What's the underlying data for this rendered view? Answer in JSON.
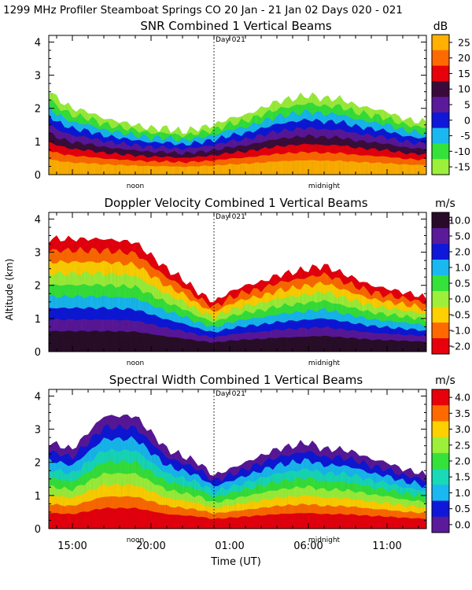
{
  "figure_title": "1299 MHz Profiler  Steamboat Springs CO  20 Jan - 21 Jan 02 Days 020 - 021",
  "shared": {
    "ylabel": "Altitude (km)",
    "xlabel": "Time (UT)",
    "ylim": [
      0,
      4.2
    ],
    "yticks": [
      0,
      1,
      2,
      3,
      4
    ],
    "xlim_hours_ut": [
      13.5,
      37.5
    ],
    "xticks": [
      {
        "hour": 15,
        "label": "15:00"
      },
      {
        "hour": 20,
        "label": "20:00"
      },
      {
        "hour": 25,
        "label": "01:00"
      },
      {
        "hour": 30,
        "label": "06:00"
      },
      {
        "hour": 35,
        "label": "11:00"
      }
    ],
    "day_marker": {
      "hour": 24,
      "label": "Day 021"
    },
    "noon_marker": {
      "hour": 19,
      "label": "noon"
    },
    "midnight_marker": {
      "hour": 31,
      "label": "midnight"
    }
  },
  "chart_data": [
    {
      "type": "heatmap",
      "title": "SNR Combined 1 Vertical Beams",
      "unit": "dB",
      "colorbar": {
        "labels": [
          "25",
          "20",
          "15",
          "10",
          "5",
          "0",
          "-5",
          "-10",
          "-15"
        ],
        "colors": [
          "#ffb000",
          "#ff6a00",
          "#e8000b",
          "#3a0a3a",
          "#5a1a9a",
          "#0f18d8",
          "#1ab8f0",
          "#35e23a",
          "#9cf03a"
        ]
      },
      "top_km_by_hour": [
        [
          13.5,
          2.6
        ],
        [
          14,
          2.3
        ],
        [
          15,
          2.0
        ],
        [
          16,
          1.9
        ],
        [
          17,
          1.7
        ],
        [
          18,
          1.6
        ],
        [
          19,
          1.5
        ],
        [
          20,
          1.4
        ],
        [
          21,
          1.4
        ],
        [
          22,
          1.3
        ],
        [
          23,
          1.4
        ],
        [
          24,
          1.5
        ],
        [
          25,
          1.7
        ],
        [
          26,
          1.8
        ],
        [
          27,
          2.0
        ],
        [
          28,
          2.2
        ],
        [
          29,
          2.3
        ],
        [
          30,
          2.4
        ],
        [
          31,
          2.3
        ],
        [
          32,
          2.3
        ],
        [
          33,
          2.1
        ],
        [
          34,
          2.0
        ],
        [
          35,
          1.9
        ],
        [
          36,
          1.7
        ],
        [
          37,
          1.6
        ],
        [
          37.5,
          1.6
        ]
      ]
    },
    {
      "type": "heatmap",
      "title": "Doppler Velocity Combined 1 Vertical Beams",
      "unit": "m/s",
      "colorbar": {
        "labels": [
          "10.0",
          "5.0",
          "2.0",
          "1.0",
          "0.5",
          "0.0",
          "-0.5",
          "-1.0",
          "-2.0"
        ],
        "colors": [
          "#2a0a2a",
          "#5a1a9a",
          "#0f18d8",
          "#1ab8f0",
          "#35e23a",
          "#9cf03a",
          "#ffd000",
          "#ff6a00",
          "#e8000b"
        ]
      },
      "top_km_by_hour": [
        [
          13.5,
          3.4
        ],
        [
          15,
          3.4
        ],
        [
          17,
          3.4
        ],
        [
          19,
          3.3
        ],
        [
          21,
          2.5
        ],
        [
          22,
          2.2
        ],
        [
          23,
          1.8
        ],
        [
          24,
          1.5
        ],
        [
          25,
          1.8
        ],
        [
          26,
          2.0
        ],
        [
          27,
          2.1
        ],
        [
          28,
          2.3
        ],
        [
          29,
          2.4
        ],
        [
          30,
          2.5
        ],
        [
          31,
          2.6
        ],
        [
          32,
          2.4
        ],
        [
          33,
          2.2
        ],
        [
          34,
          2.0
        ],
        [
          35,
          1.9
        ],
        [
          36,
          1.8
        ],
        [
          37,
          1.7
        ],
        [
          37.5,
          1.6
        ]
      ]
    },
    {
      "type": "heatmap",
      "title": "Spectral Width Combined 1 Vertical Beams",
      "unit": "m/s",
      "colorbar": {
        "labels": [
          "4.0",
          "3.5",
          "3.0",
          "2.5",
          "2.0",
          "1.5",
          "1.0",
          "0.5",
          "0.0"
        ],
        "colors": [
          "#e8000b",
          "#ff6a00",
          "#ffd000",
          "#9cf03a",
          "#35e23a",
          "#19d9b8",
          "#1ab8f0",
          "#0f18d8",
          "#5a1a9a"
        ]
      },
      "top_km_by_hour": [
        [
          13.5,
          2.6
        ],
        [
          15,
          2.4
        ],
        [
          17,
          3.4
        ],
        [
          19,
          3.4
        ],
        [
          21,
          2.4
        ],
        [
          23,
          2.0
        ],
        [
          24,
          1.6
        ],
        [
          25,
          1.8
        ],
        [
          26,
          2.0
        ],
        [
          27,
          2.2
        ],
        [
          28,
          2.4
        ],
        [
          29,
          2.5
        ],
        [
          30,
          2.6
        ],
        [
          31,
          2.4
        ],
        [
          32,
          2.4
        ],
        [
          33,
          2.3
        ],
        [
          34,
          2.1
        ],
        [
          35,
          2.0
        ],
        [
          36,
          1.8
        ],
        [
          37,
          1.7
        ],
        [
          37.5,
          1.6
        ]
      ]
    }
  ]
}
